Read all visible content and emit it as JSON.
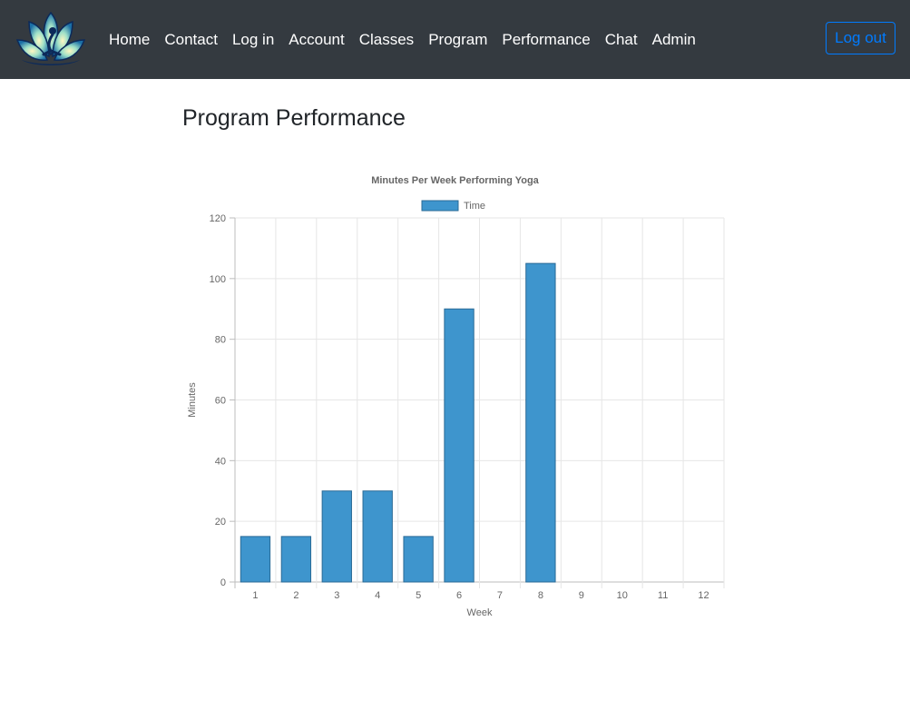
{
  "nav": {
    "logo_icon": "lotus-yoga-logo-icon",
    "links": [
      "Home",
      "Contact",
      "Log in",
      "Account",
      "Classes",
      "Program",
      "Performance",
      "Chat",
      "Admin"
    ],
    "logout_label": "Log out"
  },
  "page": {
    "title": "Program Performance"
  },
  "colors": {
    "navbar_bg": "#343a40",
    "accent": "#007bff",
    "bar_fill": "#3e95cd",
    "bar_border": "#2a6a96"
  },
  "chart_data": {
    "type": "bar",
    "title": "Minutes Per Week Performing Yoga",
    "xlabel": "Week",
    "ylabel": "Minutes",
    "categories": [
      "1",
      "2",
      "3",
      "4",
      "5",
      "6",
      "7",
      "8",
      "9",
      "10",
      "11",
      "12"
    ],
    "series": [
      {
        "name": "Time",
        "values": [
          15,
          15,
          30,
          30,
          15,
          90,
          0,
          105,
          0,
          0,
          0,
          0
        ]
      }
    ],
    "ylim": [
      0,
      120
    ],
    "yticks": [
      0,
      20,
      40,
      60,
      80,
      100,
      120
    ],
    "grid": true,
    "legend": "top"
  }
}
